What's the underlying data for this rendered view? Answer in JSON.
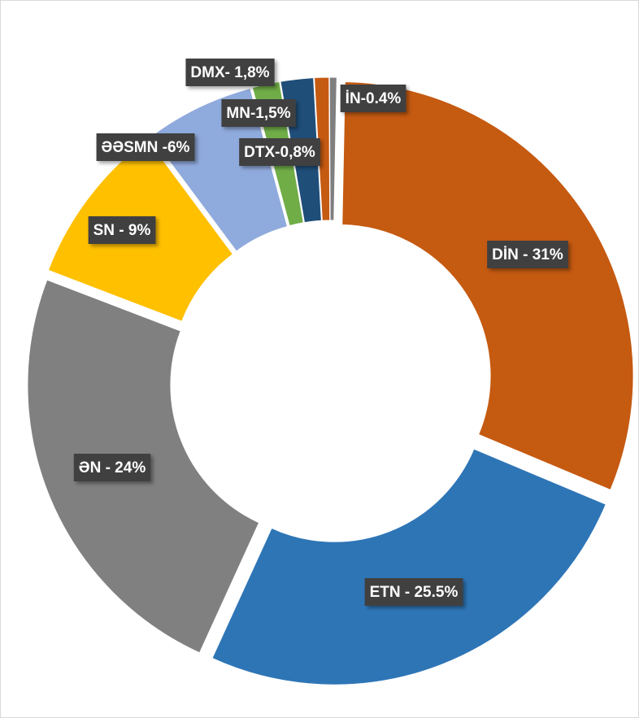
{
  "chart_data": {
    "type": "donut",
    "values": [
      31,
      25.5,
      24,
      9,
      6,
      1.5,
      1.8,
      0.8,
      0.4
    ],
    "value_labels": [
      "DİN - 31%",
      "ETN - 25.5%",
      "ƏN - 24%",
      "SN - 9%",
      "ƏƏSMN -6%",
      "MN-1,5%",
      "DMX- 1,8%",
      "DTX-0,8%",
      "İN-0.4%"
    ],
    "colors": [
      "#c55a11",
      "#2e75b6",
      "#808080",
      "#ffc000",
      "#8faadc",
      "#70ad47",
      "#1f4e79",
      "#c55a11",
      "#7f7f7f"
    ]
  }
}
